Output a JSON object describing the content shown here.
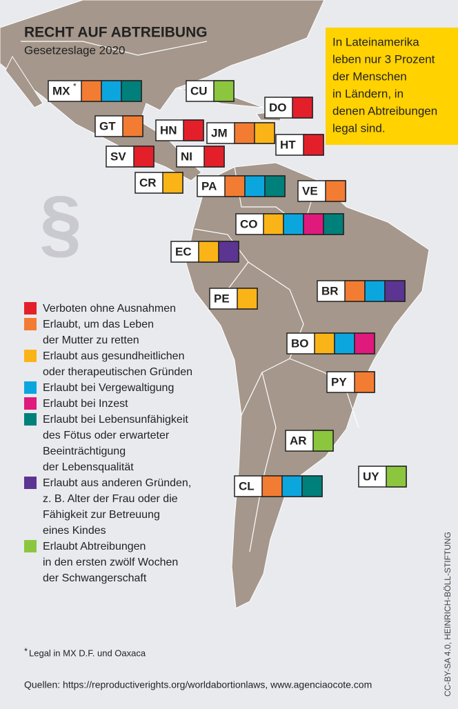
{
  "header": {
    "title": "RECHT AUF ABTREIBUNG",
    "subtitle": "Gesetzeslage 2020"
  },
  "callout": {
    "lines": [
      "In Lateinamerika",
      "leben nur 3 Prozent",
      "der Menschen",
      "in Ländern, in",
      "denen Abtreibungen",
      "legal sind."
    ],
    "color": "#ffd200"
  },
  "symbol": "§",
  "countries": [
    {
      "code": "MX",
      "note_mark": "*",
      "colors": [
        "#f37c33",
        "#0ca6df",
        "#00807a"
      ]
    },
    {
      "code": "CU",
      "colors": [
        "#8cc63f"
      ]
    },
    {
      "code": "DO",
      "colors": [
        "#e3202a"
      ]
    },
    {
      "code": "GT",
      "colors": [
        "#f37c33"
      ]
    },
    {
      "code": "HN",
      "colors": [
        "#e3202a"
      ]
    },
    {
      "code": "JM",
      "colors": [
        "#f37c33",
        "#fbb417"
      ]
    },
    {
      "code": "HT",
      "colors": [
        "#e3202a"
      ]
    },
    {
      "code": "SV",
      "colors": [
        "#e3202a"
      ]
    },
    {
      "code": "NI",
      "colors": [
        "#e3202a"
      ]
    },
    {
      "code": "CR",
      "colors": [
        "#fbb417"
      ]
    },
    {
      "code": "PA",
      "colors": [
        "#f37c33",
        "#0ca6df",
        "#00807a"
      ]
    },
    {
      "code": "VE",
      "colors": [
        "#f37c33"
      ]
    },
    {
      "code": "CO",
      "colors": [
        "#fbb417",
        "#0ca6df",
        "#e0197d",
        "#00807a"
      ]
    },
    {
      "code": "EC",
      "colors": [
        "#fbb417",
        "#5b3591"
      ]
    },
    {
      "code": "PE",
      "colors": [
        "#fbb417"
      ]
    },
    {
      "code": "BR",
      "colors": [
        "#f37c33",
        "#0ca6df",
        "#5b3591"
      ]
    },
    {
      "code": "BO",
      "colors": [
        "#fbb417",
        "#0ca6df",
        "#e0197d"
      ]
    },
    {
      "code": "PY",
      "colors": [
        "#f37c33"
      ]
    },
    {
      "code": "AR",
      "colors": [
        "#8cc63f"
      ]
    },
    {
      "code": "UY",
      "colors": [
        "#8cc63f"
      ]
    },
    {
      "code": "CL",
      "colors": [
        "#f37c33",
        "#0ca6df",
        "#00807a"
      ]
    }
  ],
  "legend": [
    {
      "color": "#e3202a",
      "lines": [
        "Verboten ohne Ausnahmen"
      ]
    },
    {
      "color": "#f37c33",
      "lines": [
        "Erlaubt, um das Leben",
        "der Mutter zu retten"
      ]
    },
    {
      "color": "#fbb417",
      "lines": [
        "Erlaubt aus gesundheitlichen",
        "oder therapeutischen Gründen"
      ]
    },
    {
      "color": "#0ca6df",
      "lines": [
        "Erlaubt bei Vergewaltigung"
      ]
    },
    {
      "color": "#e0197d",
      "lines": [
        "Erlaubt bei Inzest"
      ]
    },
    {
      "color": "#00807a",
      "lines": [
        "Erlaubt bei Lebensunfähigkeit",
        "des Fötus oder erwarteter",
        "Beeinträchtigung",
        "der Lebensqualität"
      ]
    },
    {
      "color": "#5b3591",
      "lines": [
        "Erlaubt aus anderen Gründen,",
        "z. B. Alter der Frau oder die",
        "Fähigkeit zur Betreuung",
        "eines Kindes"
      ]
    },
    {
      "color": "#8cc63f",
      "lines": [
        "Erlaubt Abtreibungen",
        "in den ersten zwölf Wochen",
        "der Schwangerschaft"
      ]
    }
  ],
  "footnote": {
    "mark": "*",
    "text": "Legal in MX D.F. und Oaxaca"
  },
  "sources": "Quellen: https://reproductiverights.org/worldabortionlaws, www.agenciaocote.com",
  "credit": "CC-BY-SA 4.0, HEINRICH-BÖLL-STIFTUNG"
}
